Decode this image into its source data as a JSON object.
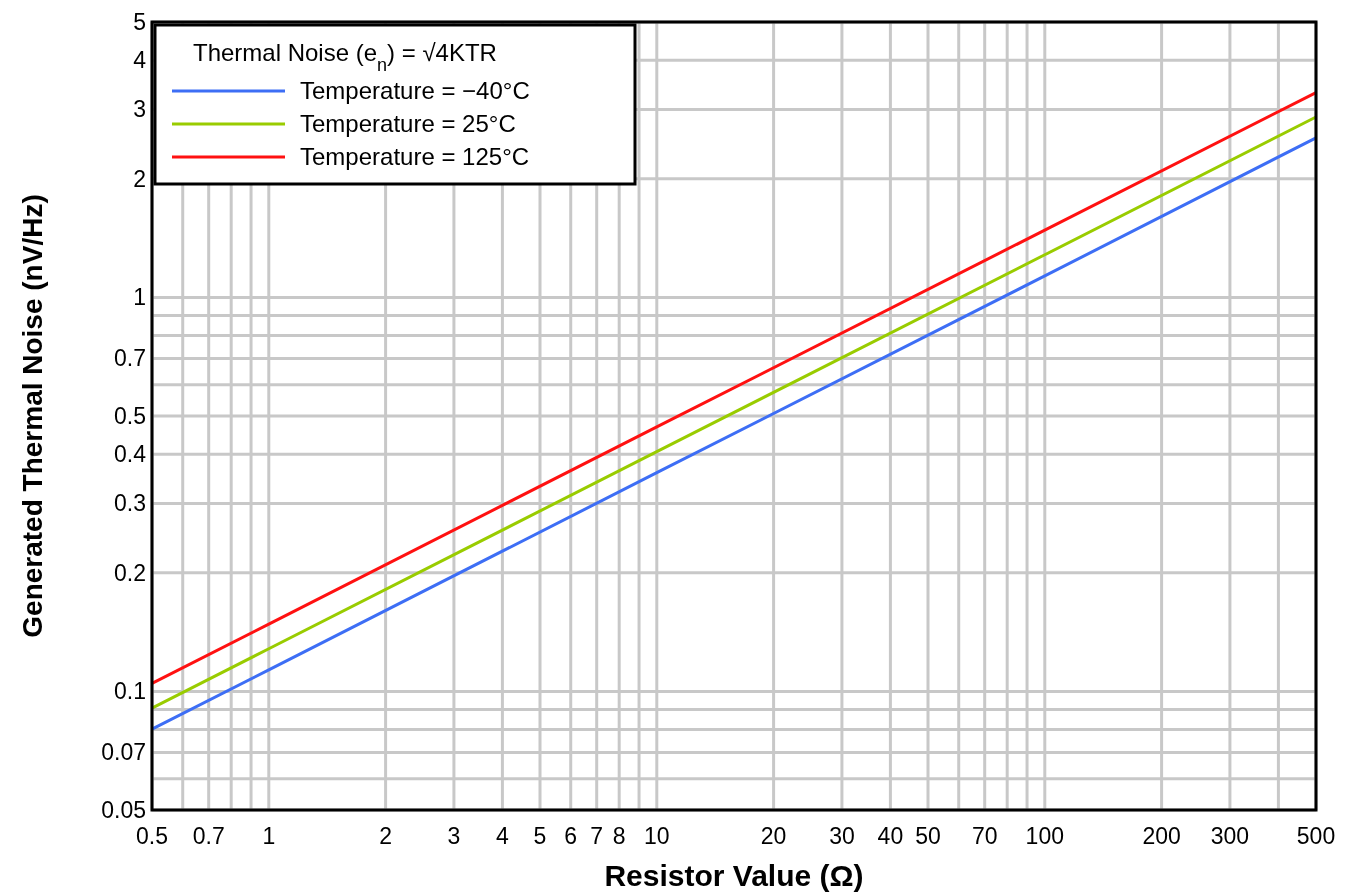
{
  "chart_data": {
    "type": "line",
    "xlabel": "Resistor Value (Ω)",
    "ylabel": "Generated Thermal Noise (nV/Hz)",
    "legend_title": "Thermal Noise (e$_{n}$) = √4KTR",
    "log": "xy",
    "grid": true,
    "legend": "top left",
    "line_style": "solid",
    "marker": "none",
    "x": [
      0.5,
      1,
      10,
      100,
      500
    ],
    "series": [
      {
        "name": "Temperature = −40°C",
        "color": "#3d6ef5",
        "values": [
          0.0802,
          0.1134,
          0.359,
          1.134,
          2.54
        ]
      },
      {
        "name": "Temperature = 25°C",
        "color": "#99cc00",
        "values": [
          0.0907,
          0.1283,
          0.406,
          1.283,
          2.87
        ]
      },
      {
        "name": "Temperature = 125°C",
        "color": "#ff1111",
        "values": [
          0.1048,
          0.1482,
          0.469,
          1.482,
          3.31
        ]
      }
    ],
    "xlim": [
      0.5,
      500
    ],
    "xticks": [
      0.5,
      {
        "value": 0.6,
        "label": null
      },
      0.7,
      {
        "value": 0.8,
        "label": null
      },
      {
        "value": 0.9,
        "label": null
      },
      1,
      2,
      3,
      4,
      5,
      6,
      7,
      8,
      {
        "value": 9,
        "label": null
      },
      10,
      20,
      30,
      40,
      50,
      {
        "value": 60,
        "label": null
      },
      70,
      {
        "value": 80,
        "label": null
      },
      {
        "value": 90,
        "label": null
      },
      100,
      200,
      300,
      {
        "value": 400,
        "label": null
      },
      500
    ],
    "ylim": [
      0.05,
      5
    ],
    "yticks": [
      0.05,
      {
        "value": 0.06,
        "label": null
      },
      0.07,
      {
        "value": 0.08,
        "label": null
      },
      {
        "value": 0.09,
        "label": null
      },
      0.1,
      0.2,
      0.3,
      0.4,
      0.5,
      {
        "value": 0.6,
        "label": null
      },
      0.7,
      {
        "value": 0.8,
        "label": null
      },
      {
        "value": 0.9,
        "label": null
      },
      1,
      2,
      3,
      4,
      5
    ]
  }
}
